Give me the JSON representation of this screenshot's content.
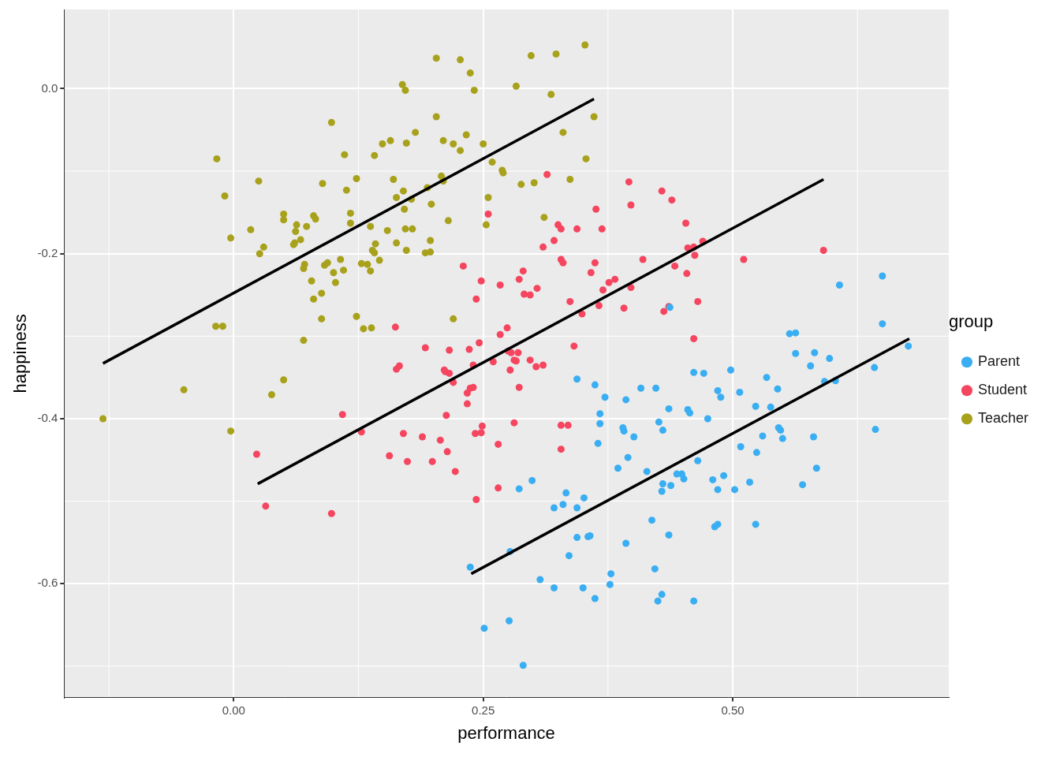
{
  "chart_data": {
    "type": "scatter",
    "x_label": "performance",
    "y_label": "happiness",
    "legend_title": "group",
    "legend": "right",
    "grid": true,
    "marker": "circle",
    "xlim": [
      -0.17,
      0.7165
    ],
    "ylim": [
      -0.738,
      0.096
    ],
    "xticks": [
      {
        "value": 0,
        "label": "0.00"
      },
      {
        "value": 0.25,
        "label": "0.25"
      },
      {
        "value": 0.5,
        "label": "0.50"
      }
    ],
    "yticks": [
      {
        "value": -0.6,
        "label": "-0.6"
      },
      {
        "value": -0.4,
        "label": "-0.4"
      },
      {
        "value": -0.2,
        "label": "-0.2"
      },
      {
        "value": 0,
        "label": "0.0"
      }
    ],
    "series": [
      {
        "name": "Parent",
        "color": "#3AAEF2",
        "x": [
          0.607,
          0.65,
          0.65,
          0.676,
          0.642,
          0.643,
          0.437,
          0.563,
          0.557,
          0.563,
          0.582,
          0.597,
          0.578,
          0.592,
          0.603,
          0.498,
          0.461,
          0.471,
          0.344,
          0.362,
          0.408,
          0.423,
          0.372,
          0.393,
          0.507,
          0.485,
          0.488,
          0.534,
          0.545,
          0.538,
          0.523,
          0.546,
          0.548,
          0.53,
          0.55,
          0.581,
          0.436,
          0.475,
          0.426,
          0.43,
          0.455,
          0.457,
          0.367,
          0.367,
          0.39,
          0.391,
          0.401,
          0.365,
          0.508,
          0.524,
          0.395,
          0.385,
          0.414,
          0.444,
          0.449,
          0.451,
          0.465,
          0.48,
          0.491,
          0.517,
          0.502,
          0.485,
          0.43,
          0.429,
          0.438,
          0.584,
          0.57,
          0.286,
          0.299,
          0.333,
          0.351,
          0.33,
          0.321,
          0.344,
          0.237,
          0.277,
          0.307,
          0.321,
          0.35,
          0.355,
          0.357,
          0.344,
          0.336,
          0.362,
          0.377,
          0.378,
          0.393,
          0.419,
          0.436,
          0.429,
          0.425,
          0.461,
          0.422,
          0.482,
          0.485,
          0.523,
          0.251,
          0.276,
          0.29
        ],
        "values": [
          -0.238,
          -0.227,
          -0.285,
          -0.312,
          -0.338,
          -0.413,
          -0.265,
          -0.296,
          -0.297,
          -0.321,
          -0.32,
          -0.327,
          -0.336,
          -0.355,
          -0.354,
          -0.341,
          -0.344,
          -0.345,
          -0.352,
          -0.359,
          -0.363,
          -0.363,
          -0.374,
          -0.377,
          -0.368,
          -0.366,
          -0.374,
          -0.35,
          -0.364,
          -0.386,
          -0.385,
          -0.411,
          -0.414,
          -0.421,
          -0.424,
          -0.422,
          -0.388,
          -0.4,
          -0.404,
          -0.414,
          -0.389,
          -0.393,
          -0.394,
          -0.406,
          -0.411,
          -0.415,
          -0.422,
          -0.43,
          -0.434,
          -0.441,
          -0.447,
          -0.46,
          -0.464,
          -0.467,
          -0.467,
          -0.473,
          -0.451,
          -0.474,
          -0.469,
          -0.477,
          -0.486,
          -0.486,
          -0.479,
          -0.488,
          -0.481,
          -0.46,
          -0.48,
          -0.485,
          -0.475,
          -0.49,
          -0.496,
          -0.504,
          -0.508,
          -0.508,
          -0.58,
          -0.561,
          -0.595,
          -0.605,
          -0.605,
          -0.543,
          -0.542,
          -0.544,
          -0.566,
          -0.618,
          -0.601,
          -0.588,
          -0.551,
          -0.523,
          -0.541,
          -0.613,
          -0.621,
          -0.621,
          -0.582,
          -0.531,
          -0.528,
          -0.528,
          -0.654,
          -0.645,
          -0.699
        ],
        "fit": {
          "x": [
            0.238,
            0.677
          ],
          "values": [
            -0.588,
            -0.303
          ],
          "color": "#000000"
        }
      },
      {
        "name": "Student",
        "color": "#F5455F",
        "x": [
          0.314,
          0.396,
          0.429,
          0.439,
          0.398,
          0.255,
          0.453,
          0.363,
          0.325,
          0.328,
          0.344,
          0.369,
          0.47,
          0.321,
          0.31,
          0.511,
          0.591,
          0.461,
          0.455,
          0.462,
          0.41,
          0.328,
          0.33,
          0.362,
          0.442,
          0.23,
          0.358,
          0.29,
          0.454,
          0.286,
          0.248,
          0.382,
          0.376,
          0.304,
          0.37,
          0.398,
          0.291,
          0.297,
          0.267,
          0.243,
          0.337,
          0.465,
          0.349,
          0.391,
          0.366,
          0.431,
          0.436,
          0.461,
          0.162,
          0.341,
          0.274,
          0.267,
          0.192,
          0.216,
          0.236,
          0.246,
          0.275,
          0.278,
          0.285,
          0.281,
          0.283,
          0.297,
          0.303,
          0.31,
          0.26,
          0.24,
          0.237,
          0.24,
          0.234,
          0.234,
          0.286,
          0.277,
          0.211,
          0.216,
          0.212,
          0.166,
          0.163,
          0.22,
          0.109,
          0.213,
          0.128,
          0.328,
          0.335,
          0.249,
          0.248,
          0.281,
          0.17,
          0.189,
          0.207,
          0.242,
          0.265,
          0.328,
          0.174,
          0.214,
          0.156,
          0.199,
          0.222,
          0.265,
          0.243,
          0.023,
          0.032,
          0.098
        ],
        "values": [
          -0.104,
          -0.113,
          -0.124,
          -0.135,
          -0.141,
          -0.152,
          -0.163,
          -0.146,
          -0.165,
          -0.17,
          -0.17,
          -0.17,
          -0.185,
          -0.184,
          -0.192,
          -0.207,
          -0.196,
          -0.192,
          -0.193,
          -0.202,
          -0.207,
          -0.207,
          -0.211,
          -0.211,
          -0.215,
          -0.215,
          -0.223,
          -0.221,
          -0.224,
          -0.231,
          -0.233,
          -0.231,
          -0.235,
          -0.242,
          -0.244,
          -0.241,
          -0.249,
          -0.25,
          -0.238,
          -0.255,
          -0.258,
          -0.258,
          -0.273,
          -0.266,
          -0.263,
          -0.27,
          -0.264,
          -0.303,
          -0.289,
          -0.312,
          -0.29,
          -0.298,
          -0.314,
          -0.317,
          -0.316,
          -0.308,
          -0.318,
          -0.32,
          -0.32,
          -0.329,
          -0.33,
          -0.329,
          -0.337,
          -0.335,
          -0.331,
          -0.335,
          -0.363,
          -0.362,
          -0.369,
          -0.382,
          -0.362,
          -0.341,
          -0.341,
          -0.345,
          -0.343,
          -0.336,
          -0.34,
          -0.356,
          -0.395,
          -0.396,
          -0.416,
          -0.408,
          -0.408,
          -0.409,
          -0.417,
          -0.405,
          -0.418,
          -0.422,
          -0.426,
          -0.418,
          -0.431,
          -0.437,
          -0.452,
          -0.44,
          -0.445,
          -0.452,
          -0.464,
          -0.484,
          -0.498,
          -0.443,
          -0.506,
          -0.515
        ],
        "fit": {
          "x": [
            0.024,
            0.591
          ],
          "values": [
            -0.479,
            -0.11
          ],
          "color": "#000000"
        }
      },
      {
        "name": "Teacher",
        "color": "#A8A11B",
        "x": [
          0.352,
          0.323,
          0.298,
          0.203,
          0.227,
          0.169,
          0.172,
          0.237,
          0.283,
          0.241,
          0.318,
          0.361,
          0.33,
          0.098,
          0.149,
          0.173,
          0.182,
          0.203,
          0.21,
          0.22,
          0.233,
          0.227,
          0.25,
          0.259,
          0.269,
          0.27,
          0.353,
          0.337,
          0.288,
          0.301,
          0.311,
          0.208,
          0.21,
          0.157,
          0.16,
          0.163,
          0.171,
          0.17,
          0.178,
          0.194,
          0.215,
          0.255,
          0.253,
          0.198,
          0.089,
          0.111,
          0.113,
          0.123,
          0.141,
          0.117,
          0.117,
          0.137,
          0.172,
          0.179,
          0.154,
          0.173,
          0.192,
          0.197,
          0.197,
          0.163,
          0.22,
          0.142,
          0.146,
          0.107,
          0.128,
          0.134,
          0.139,
          0.141,
          0.137,
          0.123,
          0.13,
          0.138,
          0.11,
          0.102,
          0.1,
          0.088,
          0.08,
          0.088,
          0.07,
          0.063,
          0.073,
          0.05,
          0.05,
          0.061,
          0.062,
          0.071,
          0.08,
          0.082,
          0.094,
          0.091,
          0.067,
          0.06,
          0.078,
          0.07,
          0.025,
          0.03,
          0.026,
          0.017,
          -0.017,
          -0.009,
          -0.003,
          -0.018,
          -0.011,
          -0.003,
          -0.05,
          -0.131,
          0.05,
          0.038
        ],
        "values": [
          0.053,
          0.042,
          0.04,
          0.037,
          0.035,
          0.005,
          -0.002,
          0.019,
          0.003,
          -0.002,
          -0.007,
          -0.034,
          -0.053,
          -0.041,
          -0.067,
          -0.066,
          -0.053,
          -0.034,
          -0.063,
          -0.067,
          -0.056,
          -0.075,
          -0.067,
          -0.089,
          -0.099,
          -0.102,
          -0.085,
          -0.11,
          -0.116,
          -0.114,
          -0.156,
          -0.106,
          -0.112,
          -0.063,
          -0.11,
          -0.132,
          -0.146,
          -0.124,
          -0.134,
          -0.12,
          -0.16,
          -0.132,
          -0.165,
          -0.14,
          -0.115,
          -0.08,
          -0.123,
          -0.109,
          -0.081,
          -0.151,
          -0.163,
          -0.167,
          -0.17,
          -0.17,
          -0.172,
          -0.196,
          -0.199,
          -0.198,
          -0.184,
          -0.187,
          -0.279,
          -0.188,
          -0.208,
          -0.207,
          -0.212,
          -0.213,
          -0.196,
          -0.199,
          -0.221,
          -0.276,
          -0.291,
          -0.29,
          -0.22,
          -0.235,
          -0.223,
          -0.248,
          -0.255,
          -0.279,
          -0.218,
          -0.165,
          -0.167,
          -0.152,
          -0.159,
          -0.187,
          -0.173,
          -0.213,
          -0.154,
          -0.158,
          -0.211,
          -0.214,
          -0.183,
          -0.189,
          -0.233,
          -0.305,
          -0.112,
          -0.192,
          -0.2,
          -0.171,
          -0.085,
          -0.13,
          -0.181,
          -0.288,
          -0.288,
          -0.415,
          -0.365,
          -0.4,
          -0.353,
          -0.371
        ],
        "fit": {
          "x": [
            -0.131,
            0.361
          ],
          "values": [
            -0.333,
            -0.0125
          ],
          "color": "#000000"
        }
      }
    ]
  }
}
